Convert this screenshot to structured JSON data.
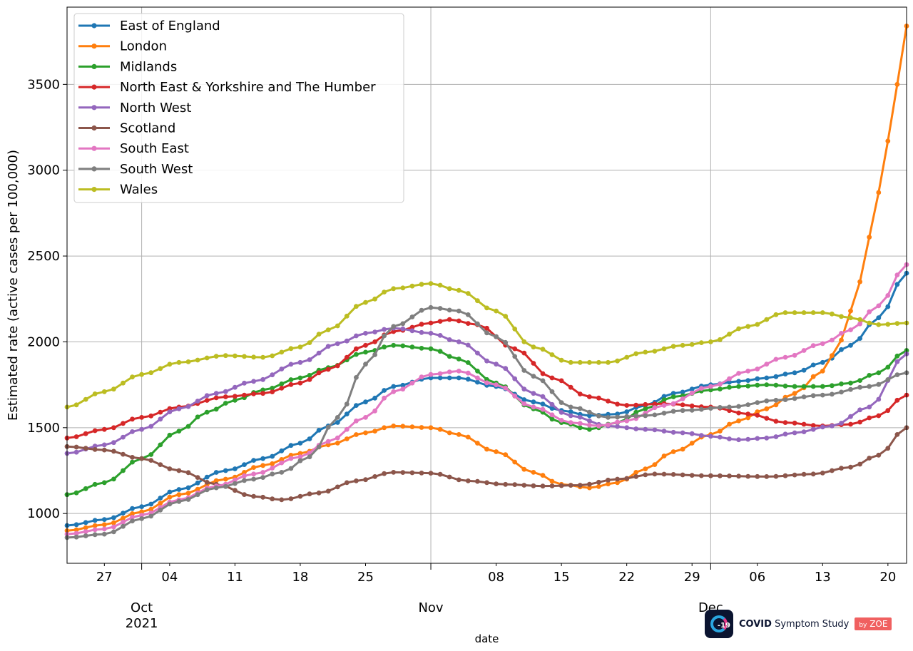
{
  "chart_data": {
    "type": "line",
    "xlabel": "date",
    "ylabel": "Estimated rate (active cases per 100,000)",
    "x_start": "2021-09-23",
    "x_end": "2021-12-22",
    "ylim": [
      710,
      3950
    ],
    "yticks": [
      1000,
      1500,
      2000,
      2500,
      3000,
      3500
    ],
    "xticks_major": [
      {
        "date": "2021-10-01",
        "label": "Oct",
        "year": "2021"
      },
      {
        "date": "2021-11-01",
        "label": "Nov",
        "year": ""
      },
      {
        "date": "2021-12-01",
        "label": "Dec",
        "year": ""
      }
    ],
    "xticks_minor": [
      {
        "date": "2021-09-27",
        "label": "27"
      },
      {
        "date": "2021-10-04",
        "label": "04"
      },
      {
        "date": "2021-10-11",
        "label": "11"
      },
      {
        "date": "2021-10-18",
        "label": "18"
      },
      {
        "date": "2021-10-25",
        "label": "25"
      },
      {
        "date": "2021-11-08",
        "label": "08"
      },
      {
        "date": "2021-11-15",
        "label": "15"
      },
      {
        "date": "2021-11-22",
        "label": "22"
      },
      {
        "date": "2021-11-29",
        "label": "29"
      },
      {
        "date": "2021-12-06",
        "label": "06"
      },
      {
        "date": "2021-12-13",
        "label": "13"
      },
      {
        "date": "2021-12-20",
        "label": "20"
      }
    ],
    "grid": true,
    "legend_position": "top-left",
    "series": [
      {
        "name": "East of England",
        "color": "#1f77b4",
        "points": [
          [
            "2021-09-23",
            930
          ],
          [
            "2021-09-27",
            965
          ],
          [
            "2021-10-01",
            1040
          ],
          [
            "2021-10-05",
            1140
          ],
          [
            "2021-10-10",
            1250
          ],
          [
            "2021-10-14",
            1320
          ],
          [
            "2021-10-18",
            1410
          ],
          [
            "2021-10-21",
            1510
          ],
          [
            "2021-10-25",
            1650
          ],
          [
            "2021-10-28",
            1740
          ],
          [
            "2021-11-01",
            1790
          ],
          [
            "2021-11-04",
            1790
          ],
          [
            "2021-11-08",
            1740
          ],
          [
            "2021-11-12",
            1650
          ],
          [
            "2021-11-15",
            1600
          ],
          [
            "2021-11-18",
            1570
          ],
          [
            "2021-11-21",
            1580
          ],
          [
            "2021-11-24",
            1630
          ],
          [
            "2021-11-27",
            1700
          ],
          [
            "2021-12-01",
            1750
          ],
          [
            "2021-12-04",
            1770
          ],
          [
            "2021-12-07",
            1790
          ],
          [
            "2021-12-10",
            1820
          ],
          [
            "2021-12-13",
            1880
          ],
          [
            "2021-12-16",
            1980
          ],
          [
            "2021-12-19",
            2140
          ],
          [
            "2021-12-22",
            2400
          ]
        ]
      },
      {
        "name": "London",
        "color": "#ff7f0e",
        "points": [
          [
            "2021-09-23",
            900
          ],
          [
            "2021-09-27",
            935
          ],
          [
            "2021-10-01",
            1010
          ],
          [
            "2021-10-05",
            1110
          ],
          [
            "2021-10-10",
            1200
          ],
          [
            "2021-10-14",
            1280
          ],
          [
            "2021-10-18",
            1350
          ],
          [
            "2021-10-21",
            1400
          ],
          [
            "2021-10-25",
            1470
          ],
          [
            "2021-10-28",
            1510
          ],
          [
            "2021-11-01",
            1500
          ],
          [
            "2021-11-04",
            1460
          ],
          [
            "2021-11-08",
            1360
          ],
          [
            "2021-11-12",
            1240
          ],
          [
            "2021-11-15",
            1170
          ],
          [
            "2021-11-18",
            1150
          ],
          [
            "2021-11-21",
            1180
          ],
          [
            "2021-11-24",
            1260
          ],
          [
            "2021-11-27",
            1360
          ],
          [
            "2021-12-01",
            1460
          ],
          [
            "2021-12-04",
            1540
          ],
          [
            "2021-12-07",
            1610
          ],
          [
            "2021-12-10",
            1700
          ],
          [
            "2021-12-13",
            1830
          ],
          [
            "2021-12-15",
            2010
          ],
          [
            "2021-12-17",
            2350
          ],
          [
            "2021-12-19",
            2870
          ],
          [
            "2021-12-20",
            3170
          ],
          [
            "2021-12-21",
            3500
          ],
          [
            "2021-12-22",
            3840
          ]
        ]
      },
      {
        "name": "Midlands",
        "color": "#2ca02c",
        "points": [
          [
            "2021-09-23",
            1110
          ],
          [
            "2021-09-27",
            1180
          ],
          [
            "2021-10-01",
            1320
          ],
          [
            "2021-10-05",
            1480
          ],
          [
            "2021-10-08",
            1590
          ],
          [
            "2021-10-11",
            1660
          ],
          [
            "2021-10-14",
            1720
          ],
          [
            "2021-10-18",
            1790
          ],
          [
            "2021-10-21",
            1850
          ],
          [
            "2021-10-25",
            1940
          ],
          [
            "2021-10-28",
            1980
          ],
          [
            "2021-11-01",
            1960
          ],
          [
            "2021-11-04",
            1900
          ],
          [
            "2021-11-08",
            1760
          ],
          [
            "2021-11-12",
            1610
          ],
          [
            "2021-11-15",
            1530
          ],
          [
            "2021-11-18",
            1490
          ],
          [
            "2021-11-21",
            1530
          ],
          [
            "2021-11-24",
            1610
          ],
          [
            "2021-11-27",
            1680
          ],
          [
            "2021-12-01",
            1720
          ],
          [
            "2021-12-04",
            1740
          ],
          [
            "2021-12-07",
            1750
          ],
          [
            "2021-12-10",
            1740
          ],
          [
            "2021-12-13",
            1740
          ],
          [
            "2021-12-16",
            1760
          ],
          [
            "2021-12-19",
            1820
          ],
          [
            "2021-12-22",
            1950
          ]
        ]
      },
      {
        "name": "North East & Yorkshire and The Humber",
        "color": "#d62728",
        "points": [
          [
            "2021-09-23",
            1440
          ],
          [
            "2021-09-27",
            1490
          ],
          [
            "2021-10-01",
            1560
          ],
          [
            "2021-10-05",
            1620
          ],
          [
            "2021-10-10",
            1680
          ],
          [
            "2021-10-14",
            1700
          ],
          [
            "2021-10-18",
            1760
          ],
          [
            "2021-10-21",
            1840
          ],
          [
            "2021-10-25",
            1980
          ],
          [
            "2021-10-28",
            2060
          ],
          [
            "2021-11-01",
            2110
          ],
          [
            "2021-11-03",
            2130
          ],
          [
            "2021-11-06",
            2100
          ],
          [
            "2021-11-10",
            1960
          ],
          [
            "2021-11-14",
            1790
          ],
          [
            "2021-11-18",
            1680
          ],
          [
            "2021-11-22",
            1630
          ],
          [
            "2021-11-26",
            1640
          ],
          [
            "2021-12-01",
            1620
          ],
          [
            "2021-12-05",
            1580
          ],
          [
            "2021-12-09",
            1530
          ],
          [
            "2021-12-13",
            1510
          ],
          [
            "2021-12-16",
            1520
          ],
          [
            "2021-12-19",
            1570
          ],
          [
            "2021-12-22",
            1690
          ]
        ]
      },
      {
        "name": "North West",
        "color": "#9467bd",
        "points": [
          [
            "2021-09-23",
            1350
          ],
          [
            "2021-09-27",
            1400
          ],
          [
            "2021-10-01",
            1490
          ],
          [
            "2021-10-05",
            1610
          ],
          [
            "2021-10-09",
            1700
          ],
          [
            "2021-10-13",
            1770
          ],
          [
            "2021-10-18",
            1880
          ],
          [
            "2021-10-22",
            1990
          ],
          [
            "2021-10-25",
            2050
          ],
          [
            "2021-10-28",
            2080
          ],
          [
            "2021-11-01",
            2050
          ],
          [
            "2021-11-04",
            2000
          ],
          [
            "2021-11-08",
            1870
          ],
          [
            "2021-11-12",
            1700
          ],
          [
            "2021-11-16",
            1570
          ],
          [
            "2021-11-20",
            1510
          ],
          [
            "2021-11-24",
            1490
          ],
          [
            "2021-11-28",
            1470
          ],
          [
            "2021-12-01",
            1450
          ],
          [
            "2021-12-04",
            1430
          ],
          [
            "2021-12-07",
            1440
          ],
          [
            "2021-12-10",
            1470
          ],
          [
            "2021-12-14",
            1510
          ],
          [
            "2021-12-18",
            1620
          ],
          [
            "2021-12-22",
            1930
          ]
        ]
      },
      {
        "name": "Scotland",
        "color": "#8c564b",
        "points": [
          [
            "2021-09-23",
            1390
          ],
          [
            "2021-09-27",
            1370
          ],
          [
            "2021-10-01",
            1320
          ],
          [
            "2021-10-05",
            1250
          ],
          [
            "2021-10-09",
            1170
          ],
          [
            "2021-10-13",
            1100
          ],
          [
            "2021-10-16",
            1080
          ],
          [
            "2021-10-20",
            1120
          ],
          [
            "2021-10-24",
            1190
          ],
          [
            "2021-10-28",
            1240
          ],
          [
            "2021-11-01",
            1235
          ],
          [
            "2021-11-05",
            1190
          ],
          [
            "2021-11-09",
            1170
          ],
          [
            "2021-11-13",
            1160
          ],
          [
            "2021-11-17",
            1165
          ],
          [
            "2021-11-21",
            1200
          ],
          [
            "2021-11-25",
            1230
          ],
          [
            "2021-12-01",
            1220
          ],
          [
            "2021-12-07",
            1215
          ],
          [
            "2021-12-12",
            1230
          ],
          [
            "2021-12-16",
            1270
          ],
          [
            "2021-12-19",
            1340
          ],
          [
            "2021-12-22",
            1500
          ]
        ]
      },
      {
        "name": "South East",
        "color": "#e377c2",
        "points": [
          [
            "2021-09-23",
            880
          ],
          [
            "2021-09-27",
            910
          ],
          [
            "2021-10-01",
            990
          ],
          [
            "2021-10-05",
            1080
          ],
          [
            "2021-10-09",
            1160
          ],
          [
            "2021-10-13",
            1230
          ],
          [
            "2021-10-18",
            1330
          ],
          [
            "2021-10-21",
            1420
          ],
          [
            "2021-10-25",
            1560
          ],
          [
            "2021-10-28",
            1710
          ],
          [
            "2021-11-01",
            1810
          ],
          [
            "2021-11-04",
            1830
          ],
          [
            "2021-11-08",
            1750
          ],
          [
            "2021-11-12",
            1620
          ],
          [
            "2021-11-16",
            1530
          ],
          [
            "2021-11-19",
            1510
          ],
          [
            "2021-11-22",
            1540
          ],
          [
            "2021-11-26",
            1630
          ],
          [
            "2021-12-01",
            1740
          ],
          [
            "2021-12-05",
            1830
          ],
          [
            "2021-12-09",
            1910
          ],
          [
            "2021-12-13",
            1990
          ],
          [
            "2021-12-16",
            2070
          ],
          [
            "2021-12-19",
            2210
          ],
          [
            "2021-12-22",
            2450
          ]
        ]
      },
      {
        "name": "South West",
        "color": "#7f7f7f",
        "points": [
          [
            "2021-09-23",
            860
          ],
          [
            "2021-09-27",
            880
          ],
          [
            "2021-10-01",
            970
          ],
          [
            "2021-10-05",
            1070
          ],
          [
            "2021-10-09",
            1150
          ],
          [
            "2021-10-13",
            1200
          ],
          [
            "2021-10-16",
            1240
          ],
          [
            "2021-10-19",
            1330
          ],
          [
            "2021-10-22",
            1560
          ],
          [
            "2021-10-25",
            1870
          ],
          [
            "2021-10-28",
            2090
          ],
          [
            "2021-11-01",
            2200
          ],
          [
            "2021-11-04",
            2180
          ],
          [
            "2021-11-08",
            2030
          ],
          [
            "2021-11-12",
            1800
          ],
          [
            "2021-11-16",
            1620
          ],
          [
            "2021-11-20",
            1560
          ],
          [
            "2021-11-24",
            1570
          ],
          [
            "2021-11-28",
            1600
          ],
          [
            "2021-12-03",
            1620
          ],
          [
            "2021-12-08",
            1660
          ],
          [
            "2021-12-13",
            1690
          ],
          [
            "2021-12-18",
            1740
          ],
          [
            "2021-12-22",
            1820
          ]
        ]
      },
      {
        "name": "Wales",
        "color": "#bcbd22",
        "points": [
          [
            "2021-09-23",
            1620
          ],
          [
            "2021-09-27",
            1710
          ],
          [
            "2021-10-01",
            1810
          ],
          [
            "2021-10-05",
            1880
          ],
          [
            "2021-10-10",
            1920
          ],
          [
            "2021-10-14",
            1910
          ],
          [
            "2021-10-18",
            1970
          ],
          [
            "2021-10-21",
            2070
          ],
          [
            "2021-10-25",
            2230
          ],
          [
            "2021-10-28",
            2310
          ],
          [
            "2021-11-01",
            2340
          ],
          [
            "2021-11-04",
            2300
          ],
          [
            "2021-11-08",
            2180
          ],
          [
            "2021-11-12",
            1970
          ],
          [
            "2021-11-16",
            1880
          ],
          [
            "2021-11-20",
            1880
          ],
          [
            "2021-11-24",
            1940
          ],
          [
            "2021-11-28",
            1980
          ],
          [
            "2021-12-01",
            2000
          ],
          [
            "2021-12-05",
            2090
          ],
          [
            "2021-12-09",
            2170
          ],
          [
            "2021-12-13",
            2170
          ],
          [
            "2021-12-16",
            2140
          ],
          [
            "2021-12-19",
            2100
          ],
          [
            "2021-12-22",
            2110
          ]
        ]
      }
    ]
  },
  "logo": {
    "badge_text": "-19",
    "brand_bold": "COVID",
    "brand_rest": " Symptom Study",
    "by_text": "by",
    "company": "ZOE"
  }
}
